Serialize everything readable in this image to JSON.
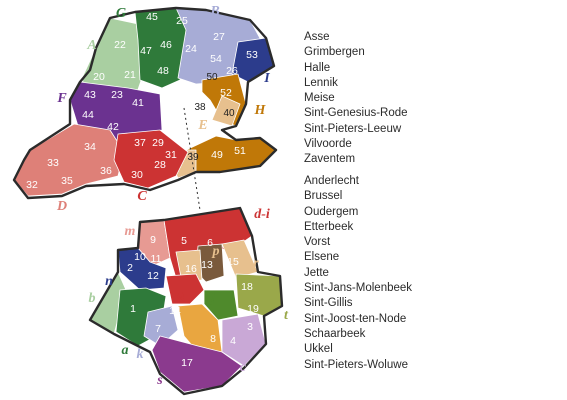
{
  "legend": {
    "group_top": [
      "Asse",
      "Grimbergen",
      "Halle",
      "Lennik",
      "Meise",
      "Sint-Genesius-Rode",
      "Sint-Pieters-Leeuw",
      "Vilvoorde",
      "Zaventem"
    ],
    "group_bottom": [
      "Anderlecht",
      "Brussel",
      "Oudergem",
      "Etterbeek",
      "Vorst",
      "Elsene",
      "Jette",
      "Sint-Jans-Molenbeek",
      "Sint-Gillis",
      "Sint-Joost-ten-Node",
      "Schaarbeek",
      "Ukkel",
      "Sint-Pieters-Woluwe"
    ]
  },
  "region_labels": {
    "top": [
      "G",
      "B",
      "A",
      "I",
      "F",
      "H",
      "E",
      "D",
      "C"
    ],
    "bottom": [
      "d-i",
      "m",
      "o",
      "p",
      "r",
      "n",
      "b",
      "q",
      "j",
      "t",
      "a",
      "k",
      "l",
      "c",
      "s"
    ]
  },
  "district_numbers": {
    "top": [
      "45",
      "25",
      "22",
      "47",
      "46",
      "24",
      "27",
      "53",
      "20",
      "21",
      "48",
      "54",
      "26",
      "50",
      "43",
      "23",
      "41",
      "52",
      "38",
      "44",
      "42",
      "40",
      "34",
      "37",
      "29",
      "31",
      "49",
      "51",
      "33",
      "36",
      "28",
      "39",
      "30",
      "32",
      "35"
    ],
    "bottom": [
      "9",
      "5",
      "10",
      "11",
      "6",
      "13",
      "2",
      "12",
      "16",
      "15",
      "18",
      "1",
      "19",
      "14",
      "7",
      "8",
      "3",
      "4",
      "17"
    ]
  },
  "colors": {
    "A": "#a9cfa1",
    "G": "#2f7a3a",
    "B": "#a7acd6",
    "I": "#2c3c8c",
    "H": "#c07808",
    "E": "#e7c08e",
    "F": "#6b3290",
    "D": "#de8078",
    "C": "#cc3333",
    "d-i": "#cc3333",
    "m": "#e79a93",
    "n": "#2c3c8c",
    "b": "#a9cfa1",
    "a": "#2f7a3a",
    "k": "#a7acd6",
    "s": "#8b3a8e",
    "o": "#7a5a3c",
    "p": "#e7c08e",
    "r": "#e7c08e",
    "q": "#cc3333",
    "j": "#4f8a2c",
    "t": "#9aa84a",
    "l": "#e9a640",
    "c": "#c9a8d6",
    "border": "#2b2b2b"
  }
}
